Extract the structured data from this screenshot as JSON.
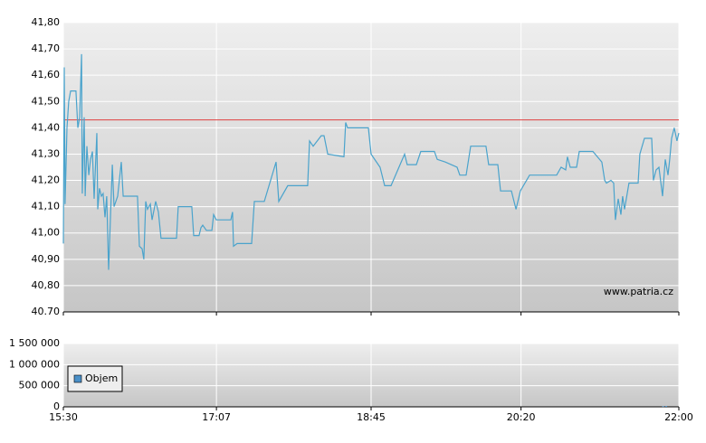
{
  "chart_data": [
    {
      "type": "line",
      "x": [
        930,
        930.6,
        931.1,
        932.3,
        933.4,
        934.6,
        938.0,
        939.2,
        940.3,
        941.5,
        942.0,
        943.2,
        943.8,
        944.9,
        946.1,
        947.2,
        948.4,
        949.5,
        951.2,
        951.8,
        952.9,
        954.1,
        955.2,
        956.4,
        957.5,
        958.7,
        961.0,
        962.1,
        964.4,
        966.7,
        967.9,
        977.0,
        978.2,
        979.9,
        981.0,
        982.2,
        983.3,
        985.1,
        986.2,
        988.5,
        990.2,
        991.9,
        1001.7,
        1002.8,
        1011.4,
        1012.6,
        1016.0,
        1017.2,
        1018.3,
        1020.6,
        1024.1,
        1025.2,
        1026.9,
        1036.1,
        1037.2,
        1037.8,
        1040.1,
        1049.3,
        1051.0,
        1057.3,
        1064.8,
        1066.5,
        1072.2,
        1084.8,
        1086.0,
        1088.3,
        1093.4,
        1095.2,
        1097.5,
        1107.8,
        1108.9,
        1110.1,
        1123.3,
        1125.0,
        1130.7,
        1133.6,
        1137.6,
        1146.2,
        1147.9,
        1153.7,
        1156.5,
        1165.1,
        1166.9,
        1172.0,
        1179.5,
        1181.2,
        1185.2,
        1188.1,
        1197.8,
        1199.5,
        1205.3,
        1207.0,
        1213.9,
        1216.8,
        1219.6,
        1225.4,
        1242.6,
        1245.4,
        1248.3,
        1249.4,
        1251.2,
        1255.2,
        1256.9,
        1265.5,
        1271.2,
        1273.0,
        1274.1,
        1277.0,
        1278.7,
        1279.8,
        1281.6,
        1283.3,
        1284.4,
        1285.6,
        1288.4,
        1290.2,
        1294.2,
        1295.3,
        1298.2,
        1302.8,
        1303.9,
        1305.6,
        1307.4,
        1309.7,
        1311.4,
        1313.1,
        1314.2,
        1315.4,
        1317.1,
        1318.8,
        1320.0
      ],
      "values": [
        40.96,
        41.63,
        41.11,
        41.4,
        41.5,
        41.54,
        41.54,
        41.4,
        41.44,
        41.68,
        41.15,
        41.44,
        41.14,
        41.33,
        41.22,
        41.28,
        41.31,
        41.13,
        41.38,
        41.09,
        41.17,
        41.14,
        41.15,
        41.06,
        41.14,
        40.86,
        41.26,
        41.1,
        41.14,
        41.27,
        41.14,
        41.14,
        40.95,
        40.94,
        40.9,
        41.12,
        41.09,
        41.11,
        41.05,
        41.12,
        41.08,
        40.98,
        40.98,
        41.1,
        41.1,
        40.99,
        40.99,
        41.02,
        41.03,
        41.01,
        41.01,
        41.07,
        41.05,
        41.05,
        41.08,
        40.95,
        40.96,
        40.96,
        41.12,
        41.12,
        41.27,
        41.12,
        41.18,
        41.18,
        41.35,
        41.33,
        41.37,
        41.37,
        41.3,
        41.29,
        41.42,
        41.4,
        41.4,
        41.3,
        41.25,
        41.18,
        41.18,
        41.3,
        41.26,
        41.26,
        41.31,
        41.31,
        41.28,
        41.27,
        41.25,
        41.22,
        41.22,
        41.33,
        41.33,
        41.26,
        41.26,
        41.16,
        41.16,
        41.09,
        41.16,
        41.22,
        41.22,
        41.25,
        41.24,
        41.29,
        41.25,
        41.25,
        41.31,
        41.31,
        41.27,
        41.2,
        41.19,
        41.2,
        41.19,
        41.05,
        41.13,
        41.07,
        41.14,
        41.09,
        41.19,
        41.19,
        41.19,
        41.3,
        41.36,
        41.36,
        41.2,
        41.24,
        41.25,
        41.14,
        41.28,
        41.22,
        41.28,
        41.36,
        41.4,
        41.35,
        41.38
      ],
      "color": "#4aa3cc",
      "reference_line": 41.43,
      "reference_color": "#e04040",
      "xlim": [
        930,
        1320
      ],
      "ylim": [
        40.7,
        41.8
      ],
      "yticks": [
        {
          "value": 40.7,
          "label": "40.70"
        },
        {
          "value": 40.8,
          "label": "40,80"
        },
        {
          "value": 40.9,
          "label": "40,90"
        },
        {
          "value": 41.0,
          "label": "41,00"
        },
        {
          "value": 41.1,
          "label": "41,10"
        },
        {
          "value": 41.2,
          "label": "41,20"
        },
        {
          "value": 41.3,
          "label": "41,30"
        },
        {
          "value": 41.4,
          "label": "41,40"
        },
        {
          "value": 41.5,
          "label": "41,50"
        },
        {
          "value": 41.6,
          "label": "41,60"
        },
        {
          "value": 41.7,
          "label": "41,70"
        },
        {
          "value": 41.8,
          "label": "41,80"
        }
      ],
      "grid": true,
      "annotation": "www.patria.cz"
    },
    {
      "type": "bar",
      "x": [
        1310.0,
        1312.0
      ],
      "series": [
        {
          "name": "Objem",
          "color": "#4a90c8",
          "values": [
            15000,
            20000
          ]
        }
      ],
      "xlim": [
        930,
        1320
      ],
      "xticks": [
        {
          "value": 930,
          "label": "15:30"
        },
        {
          "value": 1027,
          "label": "17:07"
        },
        {
          "value": 1125,
          "label": "18:45"
        },
        {
          "value": 1220,
          "label": "20:20"
        },
        {
          "value": 1320,
          "label": "22:00"
        }
      ],
      "ylim": [
        0,
        1500000
      ],
      "yticks": [
        0,
        {
          "value": 500000,
          "label": "500 000"
        },
        {
          "value": 1000000,
          "label": "1 000 000"
        },
        {
          "value": 1500000,
          "label": "1 500 000"
        }
      ],
      "grid": true,
      "legend": "bottom-left"
    }
  ]
}
